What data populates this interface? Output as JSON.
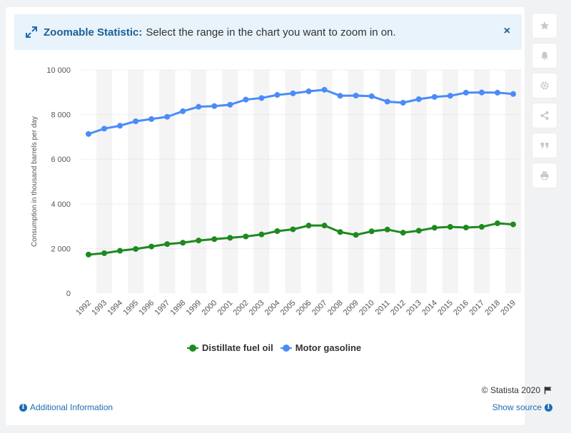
{
  "banner": {
    "label": "Zoomable Statistic:",
    "text": "Select the range in the chart you want to zoom in on.",
    "close": "×"
  },
  "sidebar": {
    "icons": [
      "star-icon",
      "bell-icon",
      "gear-icon",
      "share-icon",
      "quote-icon",
      "print-icon"
    ]
  },
  "legend": {
    "items": [
      "Distillate fuel oil",
      "Motor gasoline"
    ]
  },
  "footer": {
    "copyright": "© Statista 2020",
    "additional_info": "Additional Information",
    "show_source": "Show source"
  },
  "colors": {
    "distillate": "#1e8a1e",
    "gasoline": "#4a8cf7",
    "accent": "#1c6cb4",
    "band": "#f4f4f4"
  },
  "chart_data": {
    "type": "line",
    "title": "",
    "xlabel": "",
    "ylabel": "Consumption in thousand barrels per day",
    "ylim": [
      0,
      10000
    ],
    "yticks": [
      0,
      2000,
      4000,
      6000,
      8000,
      10000
    ],
    "ytick_labels": [
      "0",
      "2 000",
      "4 000",
      "6 000",
      "8 000",
      "10 000"
    ],
    "grid": true,
    "legend_position": "bottom",
    "categories": [
      "1992",
      "1993",
      "1994",
      "1995",
      "1996",
      "1997",
      "1998",
      "1999",
      "2000",
      "2001",
      "2002",
      "2003",
      "2004",
      "2005",
      "2006",
      "2007",
      "2008",
      "2009",
      "2010",
      "2011",
      "2012",
      "2013",
      "2014",
      "2015",
      "2016",
      "2017",
      "2018",
      "2019"
    ],
    "series": [
      {
        "name": "Distillate fuel oil",
        "color": "#1e8a1e",
        "values": [
          1730,
          1790,
          1900,
          1980,
          2090,
          2200,
          2260,
          2360,
          2420,
          2480,
          2540,
          2630,
          2780,
          2860,
          3030,
          3030,
          2740,
          2610,
          2770,
          2850,
          2710,
          2800,
          2930,
          2970,
          2940,
          2970,
          3130,
          3080
        ]
      },
      {
        "name": "Motor gasoline",
        "color": "#4a8cf7",
        "values": [
          7130,
          7370,
          7500,
          7700,
          7800,
          7900,
          8150,
          8350,
          8380,
          8440,
          8670,
          8740,
          8880,
          8950,
          9040,
          9110,
          8840,
          8850,
          8820,
          8580,
          8530,
          8690,
          8790,
          8840,
          8980,
          8990,
          8980,
          8920
        ]
      }
    ]
  }
}
